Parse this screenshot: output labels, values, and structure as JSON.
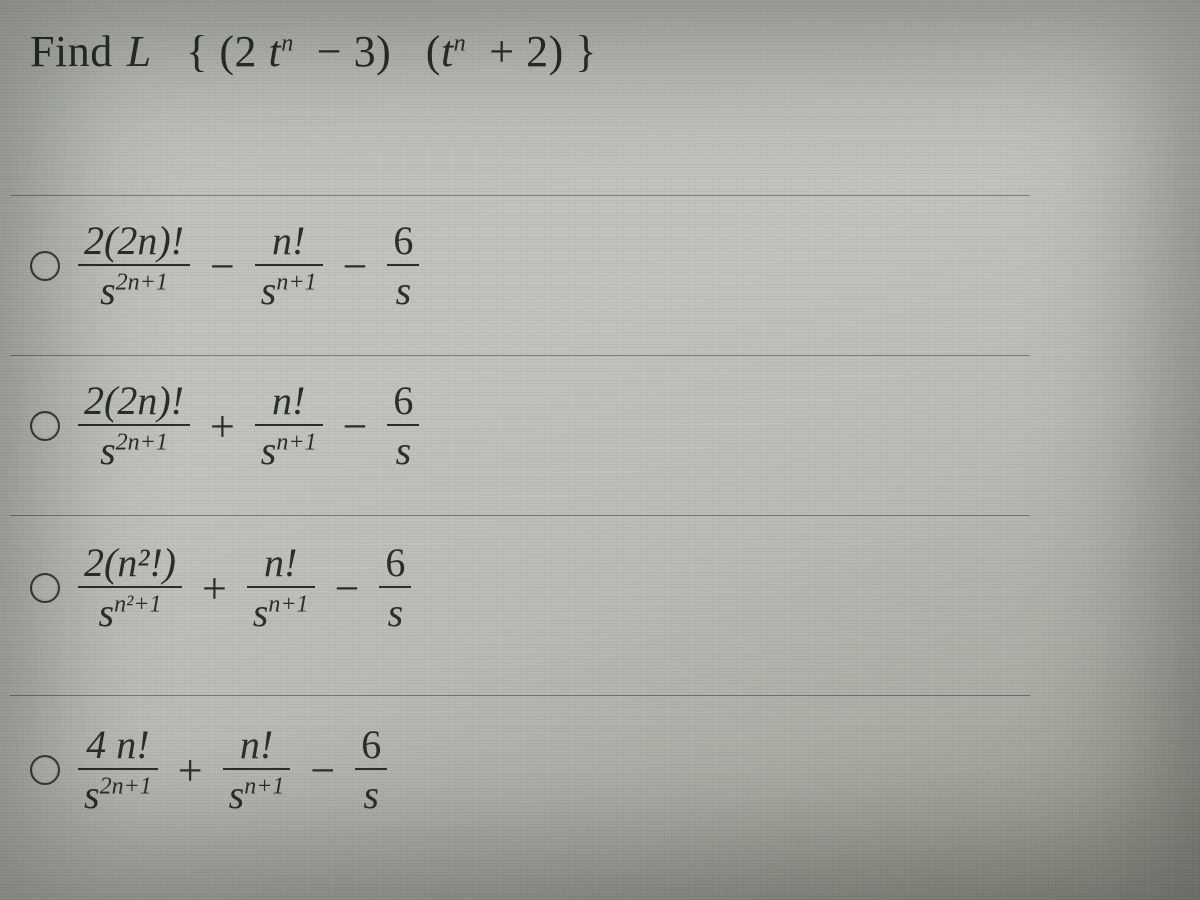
{
  "background_colors": {
    "gradient": [
      "#b8bcb6",
      "#bfc2ba",
      "#c0c3bc",
      "#b9bcb4",
      "#a8aca2",
      "#909488"
    ],
    "text_color": "#2a2f28",
    "divider_color": "rgba(0,0,0,.35)"
  },
  "question": {
    "prefix": "Find",
    "operator": "L",
    "open_brace": "{",
    "close_brace": "}",
    "lparen1": "(",
    "two": "2",
    "t1": "t",
    "exp1": "n",
    "minus": "−",
    "three": "3",
    "rparen1": ")",
    "lparen2": "(",
    "t2": "t",
    "exp2": "n",
    "plus": "+",
    "two_b": "2",
    "rparen2": ")"
  },
  "options": [
    {
      "id": "A",
      "terms": [
        {
          "num": "2(2n)!",
          "den_base": "s",
          "den_exp": "2n+1"
        },
        {
          "op": "−"
        },
        {
          "num": "n!",
          "den_base": "s",
          "den_exp": "n+1"
        },
        {
          "op": "−"
        },
        {
          "num": "6",
          "den_base": "s",
          "den_exp": ""
        }
      ]
    },
    {
      "id": "B",
      "terms": [
        {
          "num": "2(2n)!",
          "den_base": "s",
          "den_exp": "2n+1"
        },
        {
          "op": "+"
        },
        {
          "num": "n!",
          "den_base": "s",
          "den_exp": "n+1"
        },
        {
          "op": "−"
        },
        {
          "num": "6",
          "den_base": "s",
          "den_exp": ""
        }
      ]
    },
    {
      "id": "C",
      "terms": [
        {
          "num": "2(n²!)",
          "den_base": "s",
          "den_exp": "n²+1"
        },
        {
          "op": "+"
        },
        {
          "num": "n!",
          "den_base": "s",
          "den_exp": "n+1"
        },
        {
          "op": "−"
        },
        {
          "num": "6",
          "den_base": "s",
          "den_exp": ""
        }
      ]
    },
    {
      "id": "D",
      "terms": [
        {
          "num": "4 n!",
          "den_base": "s",
          "den_exp": "2n+1"
        },
        {
          "op": "+"
        },
        {
          "num": "n!",
          "den_base": "s",
          "den_exp": "n+1"
        },
        {
          "op": "−"
        },
        {
          "num": "6",
          "den_base": "s",
          "den_exp": ""
        }
      ]
    }
  ]
}
